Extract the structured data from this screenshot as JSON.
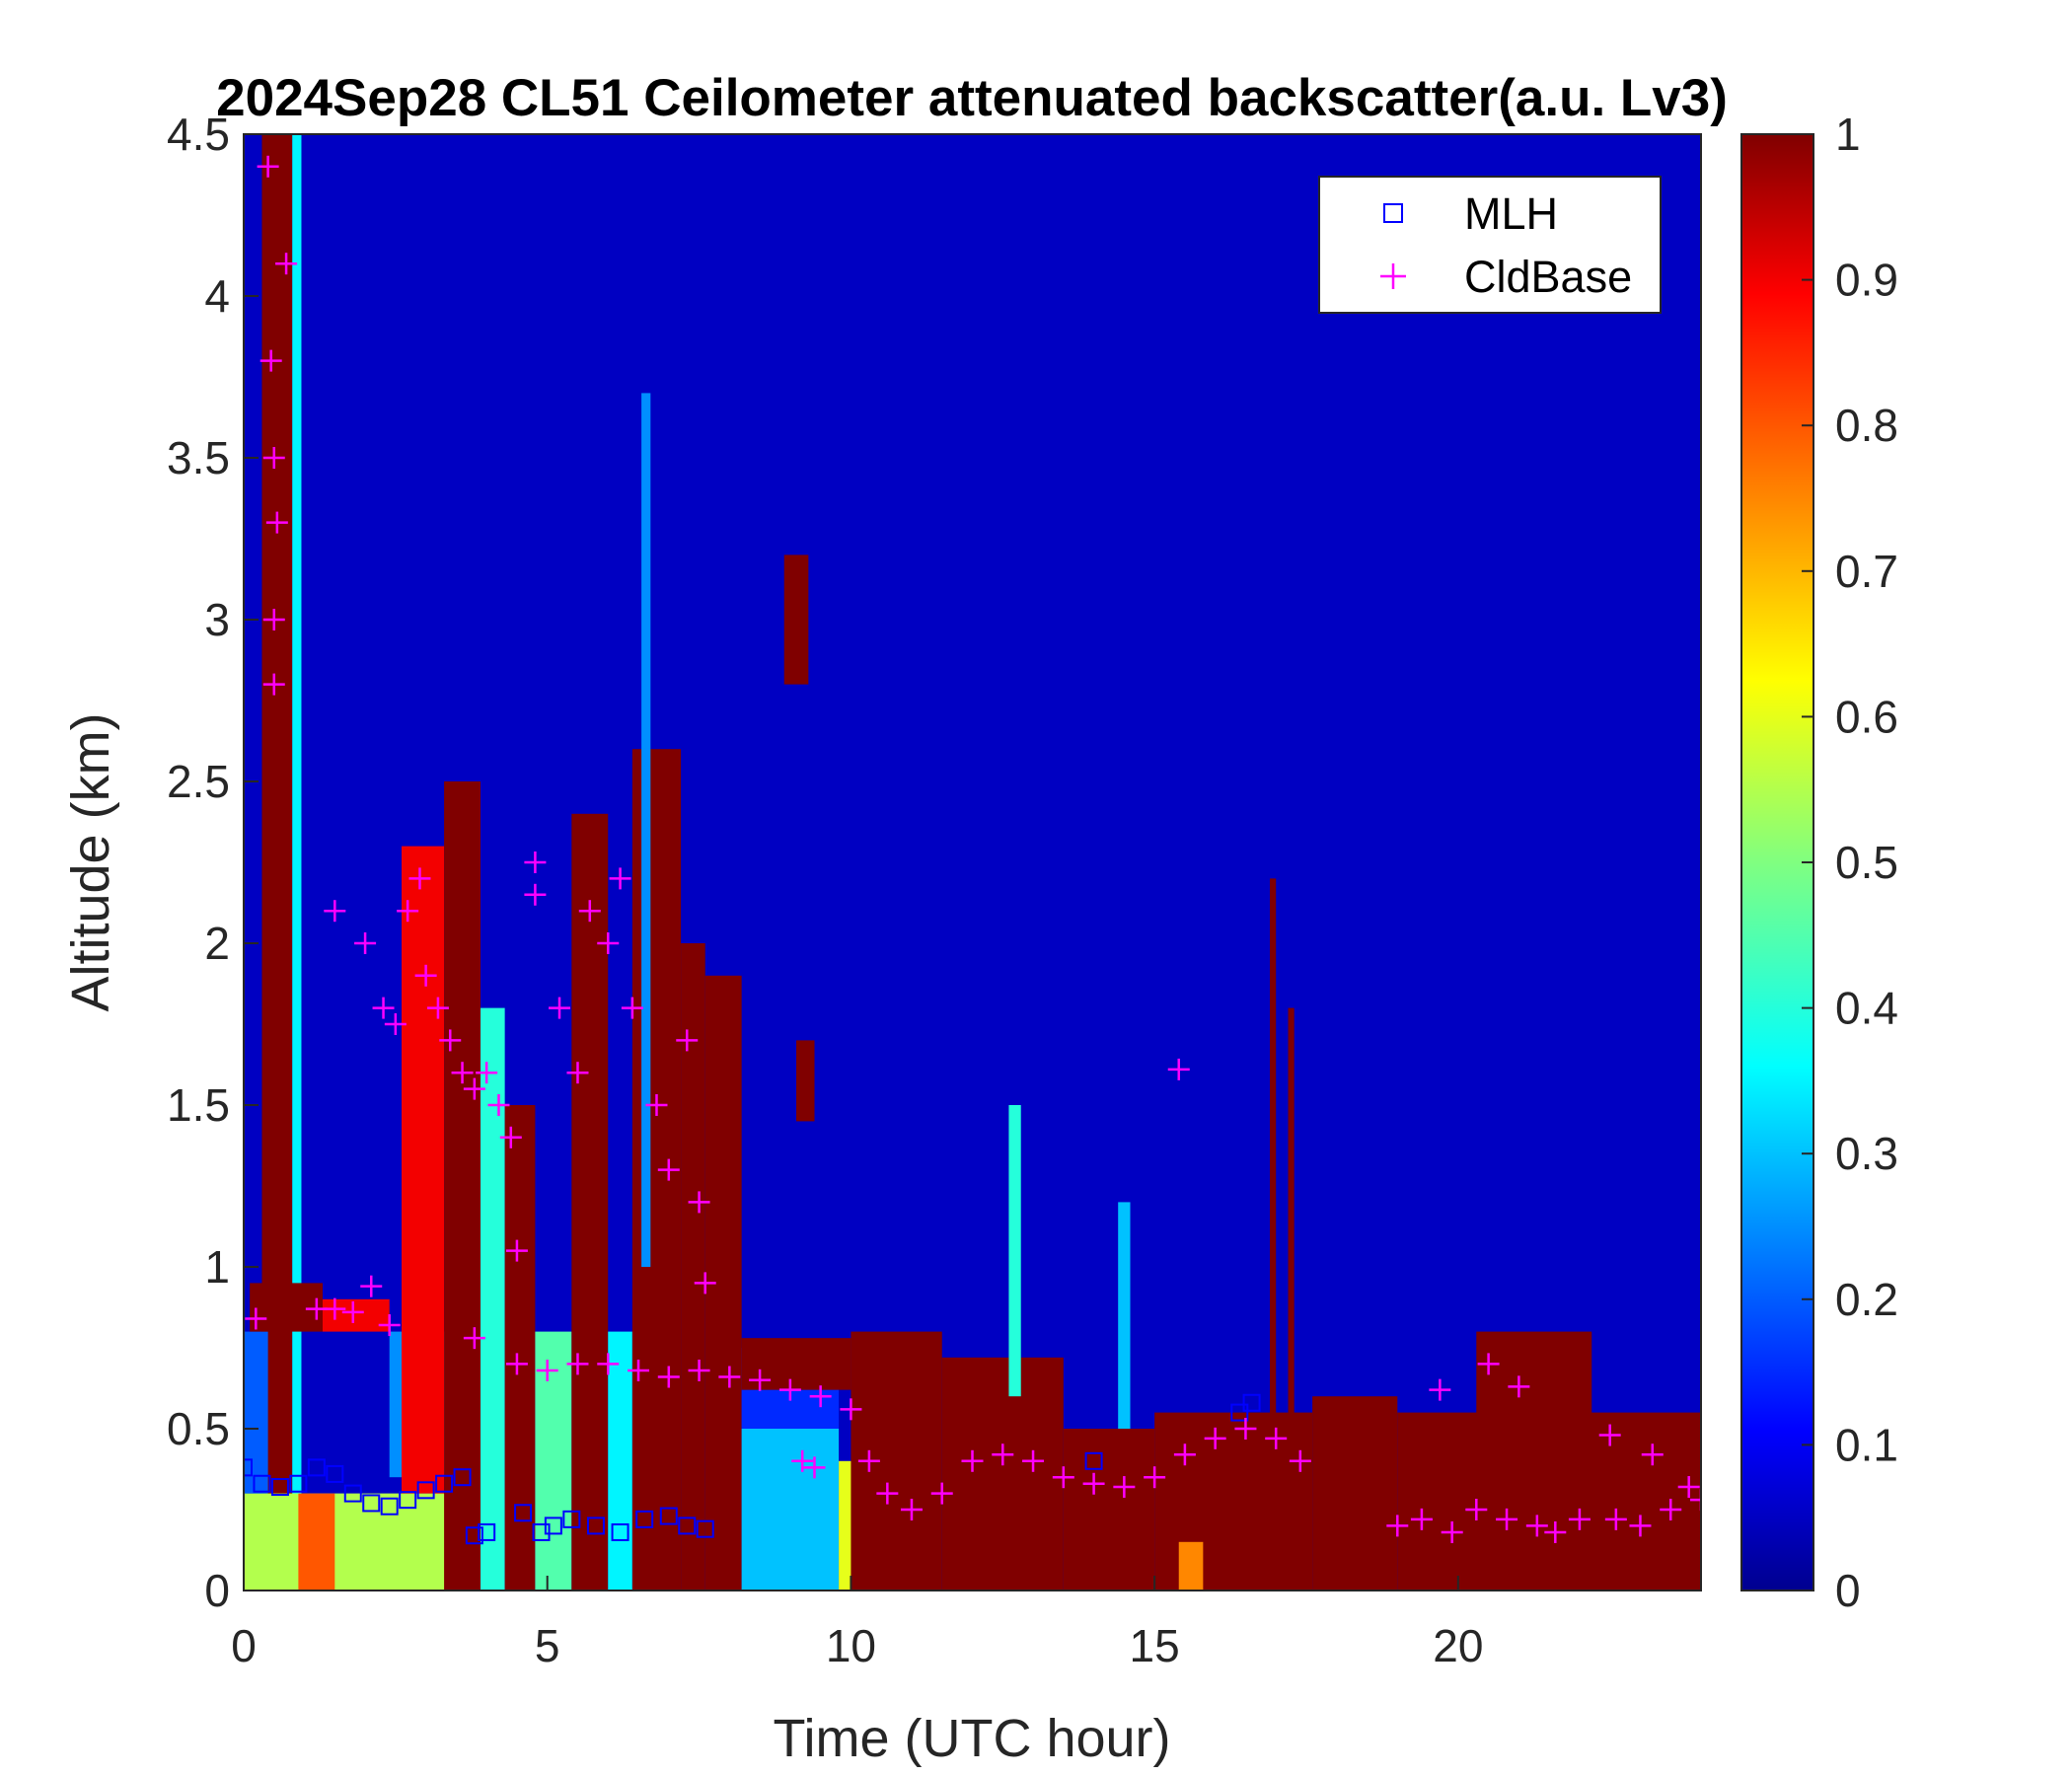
{
  "chart_data": {
    "type": "heatmap",
    "title": "2024Sep28 CL51 Ceilometer attenuated backscatter(a.u. Lv3)",
    "xlabel": "Time (UTC hour)",
    "ylabel": "Altitude (km)",
    "xlim": [
      0,
      24
    ],
    "ylim": [
      0,
      4.5
    ],
    "x_ticks": [
      0,
      5,
      10,
      15,
      20
    ],
    "x_tick_labels": [
      "0",
      "5",
      "10",
      "15",
      "20"
    ],
    "y_ticks": [
      0,
      0.5,
      1,
      1.5,
      2,
      2.5,
      3,
      3.5,
      4,
      4.5
    ],
    "y_tick_labels": [
      "0",
      "0.5",
      "1",
      "1.5",
      "2",
      "2.5",
      "3",
      "3.5",
      "4",
      "4.5"
    ],
    "colorbar": {
      "colormap": "jet",
      "range": [
        0,
        1
      ],
      "ticks": [
        0,
        0.1,
        0.2,
        0.3,
        0.4,
        0.5,
        0.6,
        0.7,
        0.8,
        0.9,
        1
      ],
      "tick_labels": [
        "0",
        "0.1",
        "0.2",
        "0.3",
        "0.4",
        "0.5",
        "0.6",
        "0.7",
        "0.8",
        "0.9",
        "1"
      ]
    },
    "background_value": 0.05,
    "features": [
      {
        "kind": "column",
        "t0": 0.3,
        "t1": 0.8,
        "z0": 0.0,
        "z1": 4.5,
        "value": 1.0
      },
      {
        "kind": "column",
        "t0": 0.8,
        "t1": 0.95,
        "z0": 0.0,
        "z1": 4.5,
        "value": 0.35
      },
      {
        "kind": "box",
        "t0": 0.0,
        "t1": 3.8,
        "z0": 0.0,
        "z1": 0.3,
        "value": 0.55
      },
      {
        "kind": "box",
        "t0": 0.9,
        "t1": 1.5,
        "z0": 0.0,
        "z1": 0.3,
        "value": 0.8
      },
      {
        "kind": "box",
        "t0": 0.0,
        "t1": 0.4,
        "z0": 0.3,
        "z1": 0.8,
        "value": 0.2
      },
      {
        "kind": "box",
        "t0": 0.1,
        "t1": 1.3,
        "z0": 0.8,
        "z1": 0.95,
        "value": 1.0
      },
      {
        "kind": "box",
        "t0": 1.3,
        "t1": 2.4,
        "z0": 0.8,
        "z1": 0.9,
        "value": 0.9
      },
      {
        "kind": "box",
        "t0": 2.4,
        "t1": 3.8,
        "z0": 0.35,
        "z1": 0.8,
        "value": 0.25
      },
      {
        "kind": "box",
        "t0": 2.6,
        "t1": 3.3,
        "z0": 0.3,
        "z1": 2.3,
        "value": 0.9
      },
      {
        "kind": "box",
        "t0": 3.3,
        "t1": 3.9,
        "z0": 0.0,
        "z1": 2.5,
        "value": 1.0
      },
      {
        "kind": "box",
        "t0": 3.9,
        "t1": 4.3,
        "z0": 0.0,
        "z1": 1.8,
        "value": 0.4
      },
      {
        "kind": "box",
        "t0": 4.3,
        "t1": 4.8,
        "z0": 0.0,
        "z1": 1.5,
        "value": 1.0
      },
      {
        "kind": "box",
        "t0": 4.8,
        "t1": 5.4,
        "z0": 0.0,
        "z1": 0.8,
        "value": 0.45
      },
      {
        "kind": "box",
        "t0": 5.4,
        "t1": 6.0,
        "z0": 0.0,
        "z1": 2.4,
        "value": 1.0
      },
      {
        "kind": "box",
        "t0": 6.0,
        "t1": 6.4,
        "z0": 0.0,
        "z1": 0.8,
        "value": 0.35
      },
      {
        "kind": "box",
        "t0": 6.4,
        "t1": 7.2,
        "z0": 0.0,
        "z1": 2.6,
        "value": 1.0
      },
      {
        "kind": "box",
        "t0": 7.2,
        "t1": 7.6,
        "z0": 0.0,
        "z1": 2.0,
        "value": 1.0
      },
      {
        "kind": "box",
        "t0": 7.6,
        "t1": 8.2,
        "z0": 0.0,
        "z1": 1.9,
        "value": 1.0
      },
      {
        "kind": "box",
        "t0": 8.2,
        "t1": 9.8,
        "z0": 0.0,
        "z1": 0.5,
        "value": 0.3
      },
      {
        "kind": "box",
        "t0": 8.2,
        "t1": 9.8,
        "z0": 0.5,
        "z1": 0.75,
        "value": 0.15
      },
      {
        "kind": "box",
        "t0": 8.2,
        "t1": 10.0,
        "z0": 0.62,
        "z1": 0.78,
        "value": 1.0
      },
      {
        "kind": "box",
        "t0": 9.8,
        "t1": 10.3,
        "z0": 0.0,
        "z1": 0.4,
        "value": 0.6
      },
      {
        "kind": "box",
        "t0": 10.0,
        "t1": 11.5,
        "z0": 0.0,
        "z1": 0.8,
        "value": 1.0
      },
      {
        "kind": "box",
        "t0": 11.5,
        "t1": 13.5,
        "z0": 0.0,
        "z1": 0.72,
        "value": 1.0
      },
      {
        "kind": "box",
        "t0": 13.5,
        "t1": 15.0,
        "z0": 0.0,
        "z1": 0.5,
        "value": 1.0
      },
      {
        "kind": "box",
        "t0": 15.0,
        "t1": 17.6,
        "z0": 0.0,
        "z1": 0.55,
        "value": 1.0
      },
      {
        "kind": "box",
        "t0": 15.4,
        "t1": 15.8,
        "z0": 0.0,
        "z1": 0.15,
        "value": 0.75
      },
      {
        "kind": "box",
        "t0": 17.6,
        "t1": 19.0,
        "z0": 0.0,
        "z1": 0.6,
        "value": 1.0
      },
      {
        "kind": "box",
        "t0": 19.0,
        "t1": 24.0,
        "z0": 0.0,
        "z1": 0.55,
        "value": 1.0
      },
      {
        "kind": "box",
        "t0": 20.3,
        "t1": 22.2,
        "z0": 0.0,
        "z1": 0.8,
        "value": 1.0
      },
      {
        "kind": "box",
        "t0": 8.9,
        "t1": 9.3,
        "z0": 2.8,
        "z1": 3.2,
        "value": 1.0
      },
      {
        "kind": "box",
        "t0": 9.1,
        "t1": 9.4,
        "z0": 1.45,
        "z1": 1.7,
        "value": 1.0
      },
      {
        "kind": "box",
        "t0": 6.55,
        "t1": 6.7,
        "z0": 1.0,
        "z1": 3.7,
        "value": 0.25
      },
      {
        "kind": "box",
        "t0": 12.6,
        "t1": 12.8,
        "z0": 0.6,
        "z1": 1.5,
        "value": 0.4
      },
      {
        "kind": "box",
        "t0": 14.4,
        "t1": 14.6,
        "z0": 0.5,
        "z1": 1.2,
        "value": 0.3
      },
      {
        "kind": "box",
        "t0": 16.9,
        "t1": 17.0,
        "z0": 0.5,
        "z1": 2.2,
        "value": 1.0
      },
      {
        "kind": "box",
        "t0": 17.2,
        "t1": 17.3,
        "z0": 0.5,
        "z1": 1.8,
        "value": 1.0
      }
    ],
    "mlh": [
      [
        0.0,
        0.38
      ],
      [
        0.3,
        0.33
      ],
      [
        0.6,
        0.32
      ],
      [
        0.9,
        0.33
      ],
      [
        1.2,
        0.38
      ],
      [
        1.5,
        0.36
      ],
      [
        1.8,
        0.3
      ],
      [
        2.1,
        0.27
      ],
      [
        2.4,
        0.26
      ],
      [
        2.7,
        0.28
      ],
      [
        3.0,
        0.31
      ],
      [
        3.3,
        0.33
      ],
      [
        3.6,
        0.35
      ],
      [
        3.8,
        0.17
      ],
      [
        4.0,
        0.18
      ],
      [
        4.6,
        0.24
      ],
      [
        4.9,
        0.18
      ],
      [
        5.1,
        0.2
      ],
      [
        5.4,
        0.22
      ],
      [
        5.8,
        0.2
      ],
      [
        6.2,
        0.18
      ],
      [
        6.6,
        0.22
      ],
      [
        7.0,
        0.23
      ],
      [
        7.3,
        0.2
      ],
      [
        7.6,
        0.19
      ],
      [
        14.0,
        0.4
      ],
      [
        16.4,
        0.55
      ],
      [
        16.6,
        0.58
      ]
    ],
    "cldbase": [
      [
        0.2,
        0.84
      ],
      [
        0.4,
        4.4
      ],
      [
        0.45,
        3.8
      ],
      [
        0.5,
        3.5
      ],
      [
        0.55,
        3.3
      ],
      [
        0.5,
        3.0
      ],
      [
        0.5,
        2.8
      ],
      [
        0.7,
        4.1
      ],
      [
        1.2,
        0.87
      ],
      [
        1.5,
        0.87
      ],
      [
        1.8,
        0.86
      ],
      [
        2.1,
        0.94
      ],
      [
        2.4,
        0.82
      ],
      [
        1.5,
        2.1
      ],
      [
        2.0,
        2.0
      ],
      [
        2.3,
        1.8
      ],
      [
        2.5,
        1.75
      ],
      [
        2.7,
        2.1
      ],
      [
        2.9,
        2.2
      ],
      [
        3.0,
        1.9
      ],
      [
        3.2,
        1.8
      ],
      [
        3.4,
        1.7
      ],
      [
        3.6,
        1.6
      ],
      [
        3.8,
        1.55
      ],
      [
        4.0,
        1.6
      ],
      [
        4.2,
        1.5
      ],
      [
        4.4,
        1.4
      ],
      [
        4.5,
        1.05
      ],
      [
        4.8,
        2.25
      ],
      [
        4.8,
        2.15
      ],
      [
        5.2,
        1.8
      ],
      [
        5.5,
        1.6
      ],
      [
        5.7,
        2.1
      ],
      [
        6.0,
        2.0
      ],
      [
        6.2,
        2.2
      ],
      [
        6.4,
        1.8
      ],
      [
        6.8,
        1.5
      ],
      [
        7.0,
        1.3
      ],
      [
        7.3,
        1.7
      ],
      [
        7.5,
        1.2
      ],
      [
        7.6,
        0.95
      ],
      [
        3.8,
        0.78
      ],
      [
        4.5,
        0.7
      ],
      [
        5.0,
        0.68
      ],
      [
        5.5,
        0.7
      ],
      [
        6.0,
        0.7
      ],
      [
        6.5,
        0.68
      ],
      [
        7.0,
        0.66
      ],
      [
        7.5,
        0.68
      ],
      [
        8.0,
        0.66
      ],
      [
        8.5,
        0.65
      ],
      [
        9.0,
        0.62
      ],
      [
        9.5,
        0.6
      ],
      [
        10.0,
        0.56
      ],
      [
        10.3,
        0.4
      ],
      [
        10.6,
        0.3
      ],
      [
        11.0,
        0.25
      ],
      [
        11.5,
        0.3
      ],
      [
        12.0,
        0.4
      ],
      [
        12.5,
        0.42
      ],
      [
        13.0,
        0.4
      ],
      [
        13.5,
        0.35
      ],
      [
        14.0,
        0.33
      ],
      [
        14.5,
        0.32
      ],
      [
        15.0,
        0.35
      ],
      [
        15.4,
        1.61
      ],
      [
        15.5,
        0.42
      ],
      [
        16.0,
        0.47
      ],
      [
        16.5,
        0.5
      ],
      [
        17.0,
        0.47
      ],
      [
        17.4,
        0.4
      ],
      [
        9.2,
        0.4
      ],
      [
        9.4,
        0.38
      ],
      [
        19.0,
        0.2
      ],
      [
        19.4,
        0.22
      ],
      [
        19.7,
        0.62
      ],
      [
        19.9,
        0.18
      ],
      [
        20.3,
        0.25
      ],
      [
        20.5,
        0.7
      ],
      [
        20.8,
        0.22
      ],
      [
        21.0,
        0.63
      ],
      [
        21.3,
        0.2
      ],
      [
        21.6,
        0.18
      ],
      [
        22.0,
        0.22
      ],
      [
        22.5,
        0.48
      ],
      [
        22.6,
        0.22
      ],
      [
        23.0,
        0.2
      ],
      [
        23.2,
        0.42
      ],
      [
        23.5,
        0.25
      ],
      [
        23.8,
        0.32
      ],
      [
        24.0,
        0.28
      ]
    ],
    "legend": {
      "placement": "top-right",
      "entries": [
        {
          "label": "MLH",
          "marker": "square",
          "color": "#0000ff"
        },
        {
          "label": "CldBase",
          "marker": "plus",
          "color": "#ff00ff"
        }
      ]
    }
  }
}
